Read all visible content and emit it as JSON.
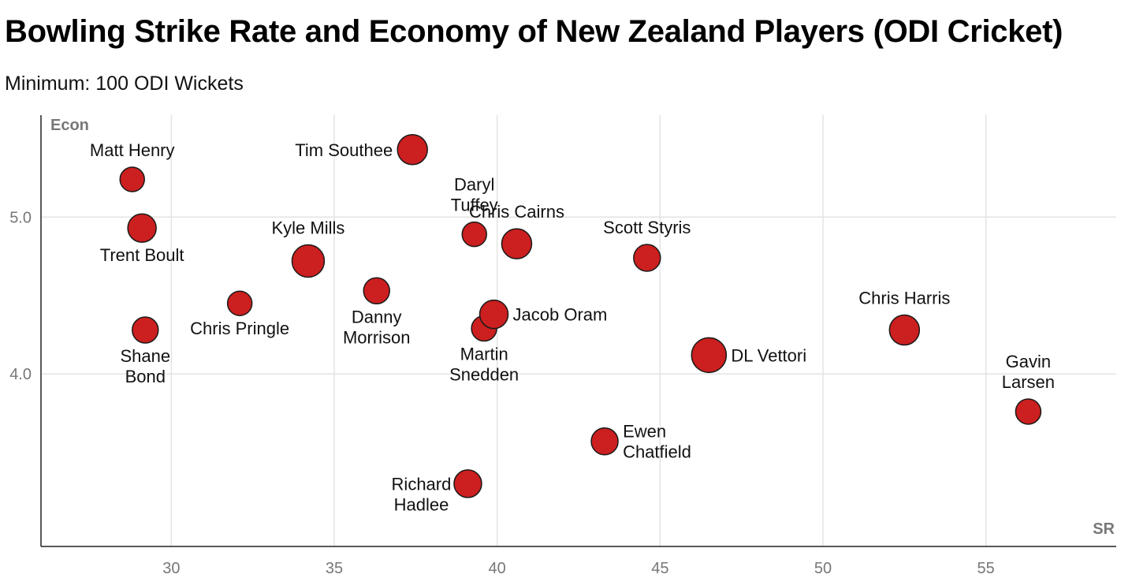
{
  "chart_data": {
    "type": "scatter",
    "title": "Bowling Strike Rate and Economy of New Zealand Players (ODI Cricket)",
    "subtitle": "Minimum: 100 ODI Wickets",
    "xlabel": "SR",
    "ylabel": "Econ",
    "xlim": [
      26,
      59
    ],
    "ylim": [
      2.9,
      5.65
    ],
    "xticks": [
      30,
      35,
      40,
      45,
      50,
      55
    ],
    "yticks": [
      4.0,
      5.0
    ],
    "ytick_labels": [
      "4.0",
      "5.0"
    ],
    "grid": true,
    "point_color": "#cc1f1f",
    "points": [
      {
        "name": "Matt Henry",
        "lines": [
          "Matt Henry"
        ],
        "x": 28.8,
        "y": 5.24,
        "size": 0.35,
        "label_pos": "top"
      },
      {
        "name": "Trent Boult",
        "lines": [
          "Trent Boult"
        ],
        "x": 29.1,
        "y": 4.93,
        "size": 0.6,
        "label_pos": "bottom"
      },
      {
        "name": "Shane Bond",
        "lines": [
          "Shane",
          "Bond"
        ],
        "x": 29.2,
        "y": 4.28,
        "size": 0.45,
        "label_pos": "bottom"
      },
      {
        "name": "Chris Pringle",
        "lines": [
          "Chris Pringle"
        ],
        "x": 32.1,
        "y": 4.45,
        "size": 0.35,
        "label_pos": "bottom"
      },
      {
        "name": "Kyle Mills",
        "lines": [
          "Kyle Mills"
        ],
        "x": 34.2,
        "y": 4.72,
        "size": 0.85,
        "label_pos": "top"
      },
      {
        "name": "Danny Morrison",
        "lines": [
          "Danny",
          "Morrison"
        ],
        "x": 36.3,
        "y": 4.53,
        "size": 0.45,
        "label_pos": "bottom"
      },
      {
        "name": "Tim Southee",
        "lines": [
          "Tim Southee"
        ],
        "x": 37.4,
        "y": 5.43,
        "size": 0.7,
        "label_pos": "left"
      },
      {
        "name": "Richard Hadlee",
        "lines": [
          "Richard",
          "Hadlee"
        ],
        "x": 39.1,
        "y": 3.3,
        "size": 0.55,
        "label_pos": "bottom-left"
      },
      {
        "name": "Daryl Tuffey",
        "lines": [
          "Daryl",
          "Tuffey"
        ],
        "x": 39.3,
        "y": 4.89,
        "size": 0.35,
        "label_pos": "top"
      },
      {
        "name": "Martin Snedden",
        "lines": [
          "Martin",
          "Snedden"
        ],
        "x": 39.6,
        "y": 4.29,
        "size": 0.4,
        "label_pos": "bottom"
      },
      {
        "name": "Jacob Oram",
        "lines": [
          "Jacob Oram"
        ],
        "x": 39.9,
        "y": 4.38,
        "size": 0.6,
        "label_pos": "right"
      },
      {
        "name": "Chris Cairns",
        "lines": [
          "Chris Cairns"
        ],
        "x": 40.6,
        "y": 4.83,
        "size": 0.7,
        "label_pos": "top"
      },
      {
        "name": "Ewen Chatfield",
        "lines": [
          "Ewen",
          "Chatfield"
        ],
        "x": 43.3,
        "y": 3.57,
        "size": 0.5,
        "label_pos": "right"
      },
      {
        "name": "Scott Styris",
        "lines": [
          "Scott Styris"
        ],
        "x": 44.6,
        "y": 4.74,
        "size": 0.5,
        "label_pos": "top"
      },
      {
        "name": "DL Vettori",
        "lines": [
          "DL Vettori"
        ],
        "x": 46.5,
        "y": 4.12,
        "size": 1.0,
        "label_pos": "right"
      },
      {
        "name": "Chris Harris",
        "lines": [
          "Chris Harris"
        ],
        "x": 52.5,
        "y": 4.28,
        "size": 0.7,
        "label_pos": "top"
      },
      {
        "name": "Gavin Larsen",
        "lines": [
          "Gavin",
          "Larsen"
        ],
        "x": 56.3,
        "y": 3.76,
        "size": 0.4,
        "label_pos": "top"
      }
    ]
  }
}
